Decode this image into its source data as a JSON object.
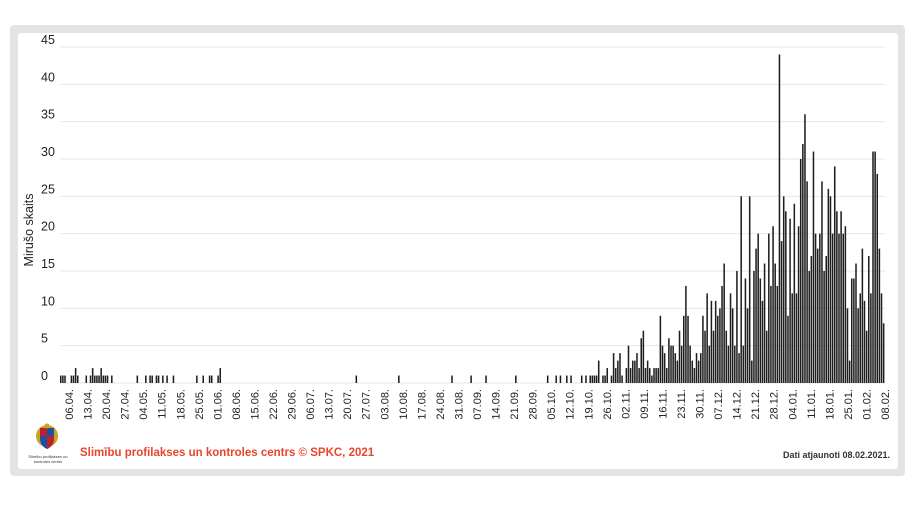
{
  "chart_data": {
    "type": "bar",
    "title": "",
    "ylabel": "Mirušo skaits",
    "xlabel": "",
    "ylim": [
      0,
      45
    ],
    "yticks": [
      0,
      5,
      10,
      15,
      20,
      25,
      30,
      35,
      40,
      45
    ],
    "grid": true,
    "xtick_labels": [
      "06.04.",
      "13.04.",
      "20.04.",
      "27.04.",
      "04.05.",
      "11.05.",
      "18.05.",
      "25.05.",
      "01.06.",
      "08.06.",
      "15.06.",
      "22.06.",
      "29.06.",
      "06.07.",
      "13.07.",
      "20.07.",
      "27.07.",
      "03.08.",
      "10.08.",
      "17.08.",
      "24.08.",
      "31.08.",
      "07.09.",
      "14.09.",
      "21.09.",
      "28.09.",
      "05.10.",
      "12.10.",
      "19.10.",
      "26.10.",
      "02.11.",
      "09.11.",
      "16.11.",
      "23.11.",
      "30.11.",
      "07.12.",
      "14.12.",
      "21.12.",
      "28.12.",
      "04.01.",
      "11.01.",
      "18.01.",
      "25.01.",
      "01.02.",
      "08.02."
    ],
    "values": [
      1,
      1,
      1,
      0,
      0,
      1,
      1,
      2,
      1,
      0,
      0,
      0,
      1,
      0,
      1,
      2,
      1,
      1,
      1,
      2,
      1,
      1,
      1,
      0,
      1,
      0,
      0,
      0,
      0,
      0,
      0,
      0,
      0,
      0,
      0,
      0,
      1,
      0,
      0,
      0,
      1,
      0,
      1,
      1,
      0,
      1,
      1,
      0,
      1,
      0,
      1,
      0,
      0,
      1,
      0,
      0,
      0,
      0,
      0,
      0,
      0,
      0,
      0,
      0,
      1,
      0,
      0,
      1,
      0,
      0,
      1,
      1,
      0,
      0,
      1,
      2,
      0,
      0,
      0,
      0,
      0,
      0,
      0,
      0,
      0,
      0,
      0,
      0,
      0,
      0,
      0,
      0,
      0,
      0,
      0,
      0,
      0,
      0,
      0,
      0,
      0,
      0,
      0,
      0,
      0,
      0,
      0,
      0,
      0,
      0,
      0,
      0,
      0,
      0,
      0,
      0,
      0,
      0,
      0,
      0,
      0,
      0,
      0,
      0,
      0,
      0,
      0,
      0,
      0,
      0,
      0,
      0,
      0,
      0,
      0,
      0,
      0,
      0,
      0,
      1,
      0,
      0,
      0,
      0,
      0,
      0,
      0,
      0,
      0,
      0,
      0,
      0,
      0,
      0,
      0,
      0,
      0,
      0,
      0,
      1,
      0,
      0,
      0,
      0,
      0,
      0,
      0,
      0,
      0,
      0,
      0,
      0,
      0,
      0,
      0,
      0,
      0,
      0,
      0,
      0,
      0,
      0,
      0,
      0,
      1,
      0,
      0,
      0,
      0,
      0,
      0,
      0,
      0,
      1,
      0,
      0,
      0,
      0,
      0,
      0,
      1,
      0,
      0,
      0,
      0,
      0,
      0,
      0,
      0,
      0,
      0,
      0,
      0,
      0,
      1,
      0,
      0,
      0,
      0,
      0,
      0,
      0,
      0,
      0,
      0,
      0,
      0,
      0,
      0,
      1,
      0,
      0,
      0,
      1,
      0,
      1,
      0,
      0,
      1,
      0,
      1,
      0,
      0,
      0,
      0,
      1,
      0,
      1,
      0,
      1,
      1,
      1,
      1,
      3,
      0,
      1,
      1,
      2,
      0,
      1,
      4,
      2,
      3,
      4,
      1,
      0,
      2,
      5,
      2,
      3,
      3,
      4,
      2,
      6,
      7,
      2,
      3,
      2,
      1,
      2,
      2,
      2,
      9,
      5,
      4,
      2,
      6,
      5,
      5,
      4,
      3,
      7,
      5,
      9,
      13,
      9,
      5,
      3,
      2,
      4,
      3,
      4,
      9,
      7,
      12,
      5,
      11,
      7,
      11,
      9,
      10,
      13,
      16,
      7,
      5,
      12,
      10,
      5,
      15,
      4,
      25,
      5,
      14,
      10,
      25,
      3,
      15,
      18,
      20,
      14,
      11,
      16,
      7,
      20,
      13,
      21,
      16,
      13,
      44,
      19,
      25,
      23,
      9,
      22,
      12,
      24,
      12,
      21,
      30,
      32,
      36,
      27,
      15,
      17,
      31,
      20,
      18,
      20,
      27,
      15,
      17,
      26,
      25,
      20,
      29,
      23,
      20,
      23,
      20,
      21,
      10,
      3,
      14,
      14,
      16,
      10,
      12,
      18,
      11,
      7,
      17,
      12,
      31,
      31,
      28,
      18,
      12,
      8
    ]
  },
  "footer": {
    "organization": "Slimību profilakses un kontroles centrs © SPKC, 2021",
    "updated": "Dati atjaunoti 08.02.2021.",
    "logo_text": "Slimību profilakses un kontroles centrs"
  },
  "colors": {
    "bar": "#1e1e1e",
    "footer_org": "#e8452c",
    "grid": "#e6e6e6",
    "frame": "#e4e4e4"
  }
}
